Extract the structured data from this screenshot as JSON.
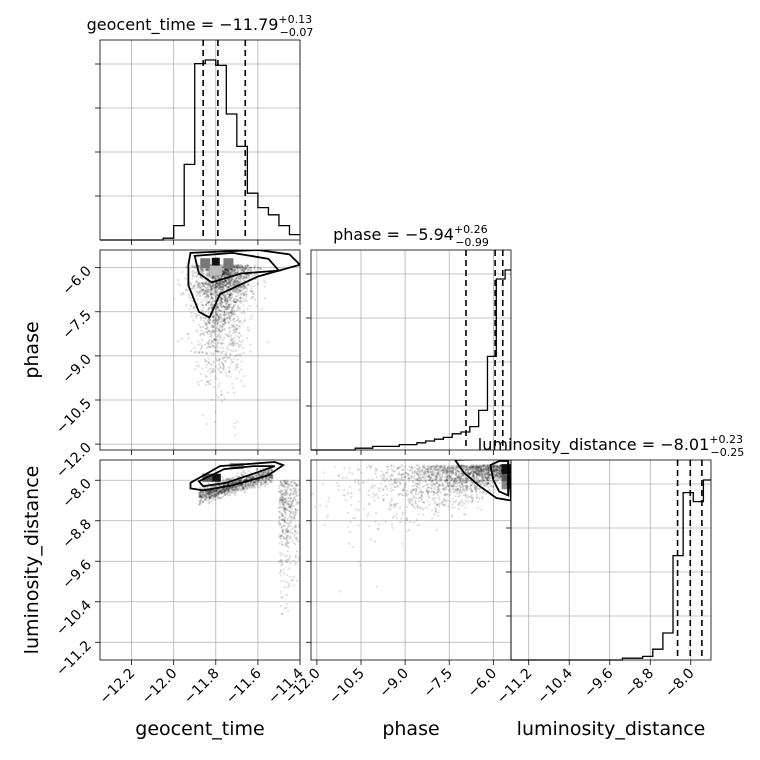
{
  "chart_data": {
    "type": "corner",
    "parameters": [
      "geocent_time",
      "phase",
      "luminosity_distance"
    ],
    "axis_labels": {
      "x": [
        "geocent_time",
        "phase",
        "luminosity_distance"
      ],
      "y": [
        "",
        "phase",
        "luminosity_distance"
      ]
    },
    "titles": [
      {
        "name": "geocent_time",
        "median": "−11.79",
        "upper": "+0.13",
        "lower": "−0.07"
      },
      {
        "name": "phase",
        "median": "−5.94",
        "upper": "+0.26",
        "lower": "−0.99"
      },
      {
        "name": "luminosity_distance",
        "median": "−8.01",
        "upper": "+0.23",
        "lower": "−0.25"
      }
    ],
    "ranges": {
      "geocent_time": [
        -12.35,
        -11.4
      ],
      "phase": [
        -12.2,
        -5.4
      ],
      "luminosity_distance": [
        -11.55,
        -7.6
      ]
    },
    "ticks": {
      "geocent_time": [
        -12.2,
        -12.0,
        -11.8,
        -11.6,
        -11.4
      ],
      "phase": [
        -12.0,
        -10.5,
        -9.0,
        -7.5,
        -6.0
      ],
      "luminosity_distance": [
        -11.2,
        -10.4,
        -9.6,
        -8.8,
        -8.0
      ]
    },
    "tick_labels": {
      "geocent_time": [
        "−12.2",
        "−12.0",
        "−11.8",
        "−11.6",
        "−11.4"
      ],
      "phase": [
        "−12.0",
        "−10.5",
        "−9.0",
        "−7.5",
        "−6.0"
      ],
      "luminosity_distance": [
        "−11.2",
        "−10.4",
        "−9.6",
        "−8.8",
        "−8.0"
      ]
    },
    "quantiles": {
      "geocent_time": [
        -11.86,
        -11.79,
        -11.66
      ],
      "phase": [
        -6.93,
        -5.94,
        -5.68
      ],
      "luminosity_distance": [
        -8.26,
        -8.01,
        -7.78
      ]
    },
    "histograms": {
      "geocent_time": {
        "edges": [
          -12.35,
          -12.3,
          -12.25,
          -12.2,
          -12.15,
          -12.1,
          -12.05,
          -12.0,
          -11.95,
          -11.9,
          -11.85,
          -11.8,
          -11.75,
          -11.7,
          -11.65,
          -11.6,
          -11.55,
          -11.5,
          -11.45,
          -11.4
        ],
        "counts": [
          0,
          0,
          0,
          0,
          0,
          0,
          1,
          8,
          42,
          98,
          100,
          97,
          70,
          52,
          26,
          18,
          14,
          8,
          3
        ]
      },
      "phase": {
        "edges": [
          -12.2,
          -11.9,
          -11.6,
          -11.3,
          -11.0,
          -10.7,
          -10.4,
          -10.1,
          -9.8,
          -9.5,
          -9.2,
          -8.9,
          -8.6,
          -8.3,
          -8.0,
          -7.7,
          -7.4,
          -7.1,
          -6.8,
          -6.5,
          -6.2,
          -5.9,
          -5.6,
          -5.4
        ],
        "counts": [
          0,
          0,
          0,
          0,
          0,
          1,
          1,
          2,
          2,
          2,
          3,
          3,
          4,
          5,
          6,
          7,
          9,
          10,
          13,
          22,
          52,
          95,
          100
        ]
      },
      "luminosity_distance": {
        "edges": [
          -11.55,
          -11.35,
          -11.15,
          -10.95,
          -10.75,
          -10.55,
          -10.35,
          -10.15,
          -9.95,
          -9.75,
          -9.55,
          -9.35,
          -9.15,
          -8.95,
          -8.75,
          -8.55,
          -8.35,
          -8.15,
          -7.95,
          -7.75,
          -7.6
        ],
        "counts": [
          0,
          0,
          0,
          0,
          0,
          0,
          0,
          0,
          0,
          0,
          0,
          1,
          1,
          2,
          6,
          15,
          58,
          93,
          88,
          100
        ]
      }
    },
    "grid": true,
    "colors": {
      "ink": "#000000",
      "grid": "#b0b0b0"
    }
  }
}
